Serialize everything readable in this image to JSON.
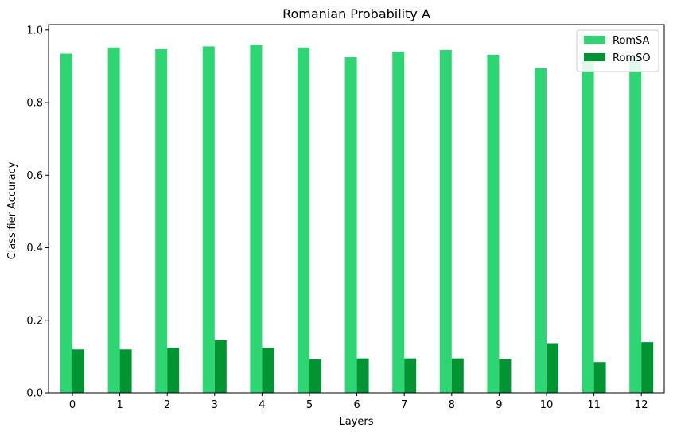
{
  "chart_data": {
    "type": "bar",
    "title": "Romanian Probability A",
    "xlabel": "Layers",
    "ylabel": "Classifier Accuracy",
    "categories": [
      "0",
      "1",
      "2",
      "3",
      "4",
      "5",
      "6",
      "7",
      "8",
      "9",
      "10",
      "11",
      "12"
    ],
    "series": [
      {
        "name": "RomSA",
        "color": "#2ed573",
        "values": [
          0.935,
          0.952,
          0.948,
          0.955,
          0.96,
          0.952,
          0.925,
          0.94,
          0.945,
          0.932,
          0.895,
          0.918,
          0.925
        ]
      },
      {
        "name": "RomSO",
        "color": "#009432",
        "values": [
          0.12,
          0.12,
          0.125,
          0.145,
          0.125,
          0.092,
          0.095,
          0.095,
          0.095,
          0.093,
          0.137,
          0.085,
          0.14
        ]
      }
    ],
    "ylim": [
      0,
      1.0
    ],
    "yticks": [
      "0.0",
      "0.2",
      "0.4",
      "0.6",
      "0.8",
      "1.0"
    ],
    "legend_position": "top-right",
    "grid": false
  }
}
